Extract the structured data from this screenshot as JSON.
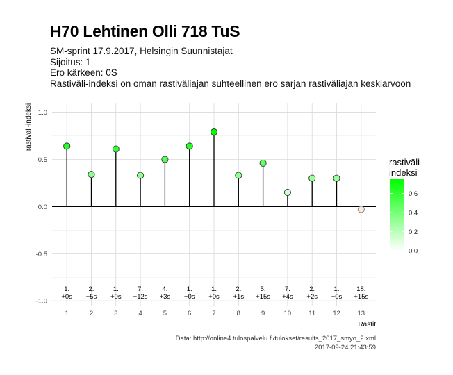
{
  "title": "H70 Lehtinen Olli 718 TuS",
  "subtitle_lines": [
    "SM-sprint 17.9.2017, Helsingin Suunnistajat",
    "Sijoitus: 1",
    "Ero kärkeen: 0S",
    "Rastiväli-indeksi on oman rastiväliajan suhteellinen ero sarjan rastiväliajan keskiarvoon"
  ],
  "caption_lines": [
    "Data: http://online4.tulospalvelu.fi/tulokset/results_2017_smyo_2.xml",
    "2017-09-24 21:43:59"
  ],
  "chart_data": {
    "type": "lollipop",
    "xlabel": "Rastit",
    "ylabel": "rastiväli-indeksi",
    "ylim": [
      -1.05,
      1.1
    ],
    "xlim": [
      0.4,
      13.6
    ],
    "y_ticks": [
      -1.0,
      -0.5,
      0.0,
      0.5,
      1.0
    ],
    "y_tick_labels": [
      "-1.0",
      "-0.5",
      "0.0",
      "0.5",
      "1.0"
    ],
    "x_ticks": [
      1,
      2,
      3,
      4,
      5,
      6,
      7,
      8,
      9,
      10,
      11,
      12,
      13
    ],
    "x_tick_labels": [
      "1",
      "2",
      "3",
      "4",
      "5",
      "6",
      "7",
      "8",
      "9",
      "10",
      "11",
      "12",
      "13"
    ],
    "grid": true,
    "baseline": 0,
    "points": [
      {
        "x": 1,
        "y": 0.64,
        "rank": "1.",
        "diff": "+0s"
      },
      {
        "x": 2,
        "y": 0.34,
        "rank": "2.",
        "diff": "+5s"
      },
      {
        "x": 3,
        "y": 0.61,
        "rank": "1.",
        "diff": "+0s"
      },
      {
        "x": 4,
        "y": 0.33,
        "rank": "7.",
        "diff": "+12s"
      },
      {
        "x": 5,
        "y": 0.5,
        "rank": "4.",
        "diff": "+3s"
      },
      {
        "x": 6,
        "y": 0.64,
        "rank": "1.",
        "diff": "+0s"
      },
      {
        "x": 7,
        "y": 0.79,
        "rank": "1.",
        "diff": "+0s"
      },
      {
        "x": 8,
        "y": 0.33,
        "rank": "2.",
        "diff": "+1s"
      },
      {
        "x": 9,
        "y": 0.46,
        "rank": "5.",
        "diff": "+15s"
      },
      {
        "x": 10,
        "y": 0.15,
        "rank": "7.",
        "diff": "+4s"
      },
      {
        "x": 11,
        "y": 0.3,
        "rank": "2.",
        "diff": "+2s"
      },
      {
        "x": 12,
        "y": 0.3,
        "rank": "1.",
        "diff": "+0s"
      },
      {
        "x": 13,
        "y": -0.03,
        "rank": "18.",
        "diff": "+15s"
      }
    ],
    "label_y": -0.91,
    "legend": {
      "title_lines": [
        "rastiväli-",
        "indeksi"
      ],
      "range": [
        0.0,
        0.75
      ],
      "ticks": [
        0.0,
        0.2,
        0.4,
        0.6
      ],
      "tick_labels": [
        "0.0",
        "0.2",
        "0.4",
        "0.6"
      ],
      "color_low": "#ffffff",
      "color_high": "#00ff00",
      "placement": "right"
    },
    "colors": {
      "panel_grid_major": "#d9d9d9",
      "panel_grid_minor": "#ededed",
      "stem": "#000000",
      "negative_point": "#f4ece6",
      "negative_point_stroke": "#8b6f5e"
    }
  }
}
